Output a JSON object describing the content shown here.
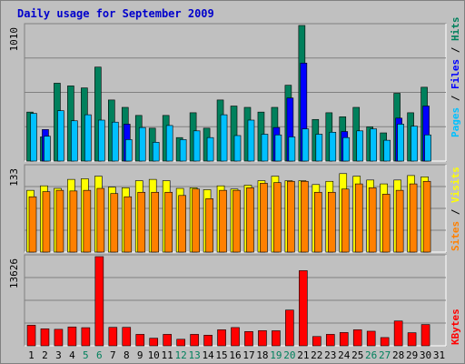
{
  "title": "Daily usage for September 2009",
  "colors": {
    "background": "#c0c0c0",
    "panel": "#c0c0c0",
    "grid": "#808080",
    "hits": "#00805c",
    "files": "#0000ff",
    "pages": "#00c0ff",
    "visits": "#ffff00",
    "sites": "#ff8000",
    "kbytes": "#ff0000",
    "title": "#0000cc",
    "weekend": "#00805c",
    "weekday": "#000000"
  },
  "chart_data": [
    {
      "type": "bar",
      "panel": "hits-files-pages",
      "title": "Daily usage for September 2009",
      "ylabel_max": "1010",
      "legend": [
        "Pages",
        "Files",
        "Hits"
      ],
      "categories": [
        "1",
        "2",
        "3",
        "4",
        "5",
        "6",
        "7",
        "8",
        "9",
        "10",
        "11",
        "12",
        "13",
        "14",
        "15",
        "16",
        "17",
        "18",
        "19",
        "20",
        "21",
        "22",
        "23",
        "24",
        "25",
        "26",
        "27",
        "28",
        "29",
        "30",
        "31"
      ],
      "weekend_days": [
        "5",
        "6",
        "12",
        "13",
        "19",
        "20",
        "26",
        "27"
      ],
      "ylim": [
        0,
        1010
      ],
      "series": [
        {
          "name": "Hits",
          "values": [
            365,
            180,
            580,
            560,
            545,
            700,
            455,
            400,
            340,
            245,
            340,
            175,
            360,
            245,
            455,
            410,
            400,
            365,
            400,
            565,
            1010,
            310,
            360,
            330,
            400,
            255,
            210,
            505,
            360,
            550,
            0
          ]
        },
        {
          "name": "Files",
          "values": [
            0,
            235,
            0,
            0,
            0,
            0,
            0,
            275,
            0,
            0,
            0,
            0,
            0,
            0,
            0,
            0,
            0,
            0,
            250,
            470,
            730,
            0,
            0,
            220,
            0,
            0,
            0,
            320,
            0,
            410,
            0
          ]
        },
        {
          "name": "Pages",
          "values": [
            355,
            185,
            375,
            300,
            345,
            305,
            290,
            160,
            250,
            140,
            265,
            160,
            225,
            175,
            345,
            190,
            305,
            200,
            195,
            180,
            240,
            200,
            215,
            175,
            225,
            240,
            155,
            275,
            260,
            195,
            0
          ]
        }
      ]
    },
    {
      "type": "bar",
      "panel": "visits-sites",
      "ylabel_max": "133",
      "legend": [
        "Sites",
        "Visits"
      ],
      "categories": [
        "1",
        "2",
        "3",
        "4",
        "5",
        "6",
        "7",
        "8",
        "9",
        "10",
        "11",
        "12",
        "13",
        "14",
        "15",
        "16",
        "17",
        "18",
        "19",
        "20",
        "21",
        "22",
        "23",
        "24",
        "25",
        "26",
        "27",
        "28",
        "29",
        "30",
        "31"
      ],
      "ylim": [
        0,
        133
      ],
      "series": [
        {
          "name": "Visits",
          "values": [
            96,
            103,
            99,
            113,
            114,
            118,
            101,
            100,
            111,
            113,
            111,
            99,
            100,
            97,
            103,
            98,
            104,
            111,
            118,
            111,
            111,
            105,
            110,
            122,
            118,
            112,
            106,
            112,
            119,
            117,
            0
          ]
        },
        {
          "name": "Sites",
          "values": [
            86,
            94,
            96,
            95,
            96,
            99,
            91,
            86,
            93,
            93,
            93,
            88,
            98,
            83,
            96,
            96,
            100,
            107,
            108,
            110,
            110,
            93,
            93,
            98,
            106,
            100,
            90,
            96,
            106,
            110,
            0
          ]
        }
      ]
    },
    {
      "type": "bar",
      "panel": "kbytes",
      "ylabel_max": "13626",
      "legend": [
        "KBytes"
      ],
      "categories": [
        "1",
        "2",
        "3",
        "4",
        "5",
        "6",
        "7",
        "8",
        "9",
        "10",
        "11",
        "12",
        "13",
        "14",
        "15",
        "16",
        "17",
        "18",
        "19",
        "20",
        "21",
        "22",
        "23",
        "24",
        "25",
        "26",
        "27",
        "28",
        "29",
        "30",
        "31"
      ],
      "ylim": [
        0,
        13626
      ],
      "series": [
        {
          "name": "KBytes",
          "values": [
            3140,
            2600,
            2520,
            2880,
            2770,
            13626,
            2820,
            2820,
            1750,
            1160,
            1750,
            1000,
            1750,
            1620,
            2450,
            2790,
            2180,
            2320,
            2300,
            5460,
            11480,
            1420,
            1750,
            2030,
            2450,
            2230,
            1260,
            3790,
            2000,
            3250,
            0
          ]
        }
      ]
    }
  ]
}
